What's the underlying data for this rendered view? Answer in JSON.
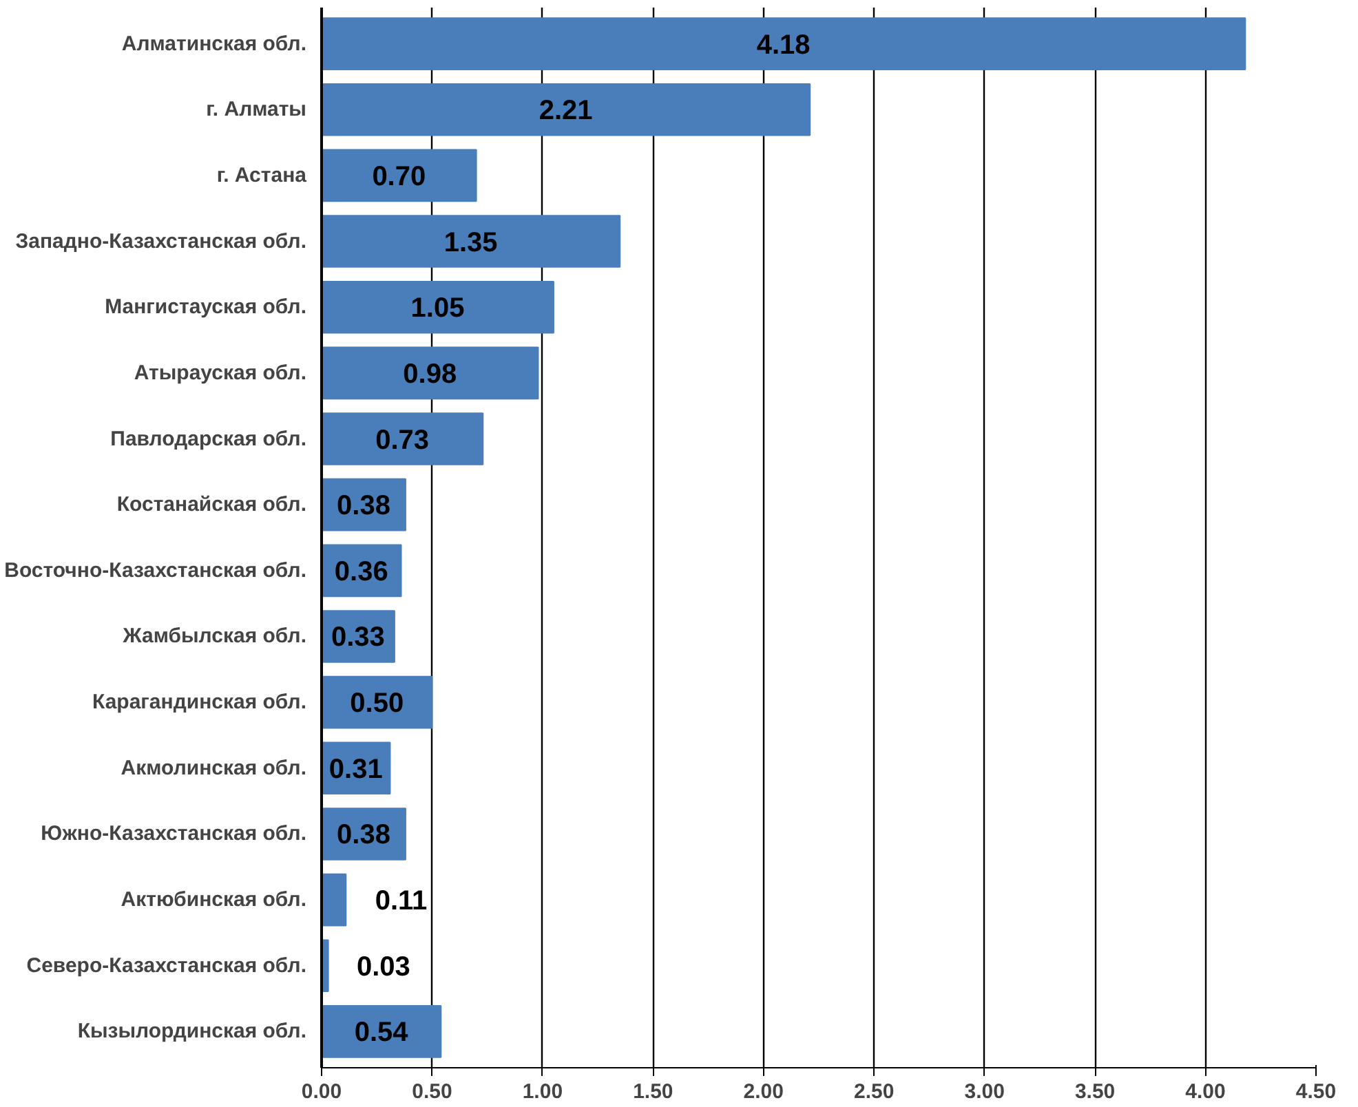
{
  "chart_data": {
    "type": "bar",
    "orientation": "horizontal",
    "categories": [
      "Алматинская обл.",
      "г. Алматы",
      "г. Астана",
      "Западно-Казахстанская обл.",
      "Мангистауская обл.",
      "Атырауская обл.",
      "Павлодарская обл.",
      "Костанайская обл.",
      "Восточно-Казахстанская обл.",
      "Жамбылская обл.",
      "Карагандинская обл.",
      "Акмолинская обл.",
      "Южно-Казахстанская обл.",
      "Актюбинская обл.",
      "Северо-Казахстанская обл.",
      "Кызылординская обл."
    ],
    "values": [
      4.18,
      2.21,
      0.7,
      1.35,
      1.05,
      0.98,
      0.73,
      0.38,
      0.36,
      0.33,
      0.5,
      0.31,
      0.38,
      0.11,
      0.03,
      0.54
    ],
    "value_labels": [
      "4.18",
      "2.21",
      "0.70",
      "1.35",
      "1.05",
      "0.98",
      "0.73",
      "0.38",
      "0.36",
      "0.33",
      "0.50",
      "0.31",
      "0.38",
      "0.11",
      "0.03",
      "0.54"
    ],
    "color": "#4a7ebb",
    "xlim": [
      0,
      4.5
    ],
    "xticks": [
      {
        "value": 0,
        "label": "0.00"
      },
      {
        "value": 0.5,
        "label": "0.50"
      },
      {
        "value": 1,
        "label": "1.00"
      },
      {
        "value": 1.5,
        "label": "1.50"
      },
      {
        "value": 2,
        "label": "2.00"
      },
      {
        "value": 2.5,
        "label": "2.50"
      },
      {
        "value": 3,
        "label": "3.00"
      },
      {
        "value": 3.5,
        "label": "3.50"
      },
      {
        "value": 4,
        "label": "4.00"
      },
      {
        "value": 4.5,
        "label": "4.50"
      }
    ],
    "grid": "x"
  }
}
